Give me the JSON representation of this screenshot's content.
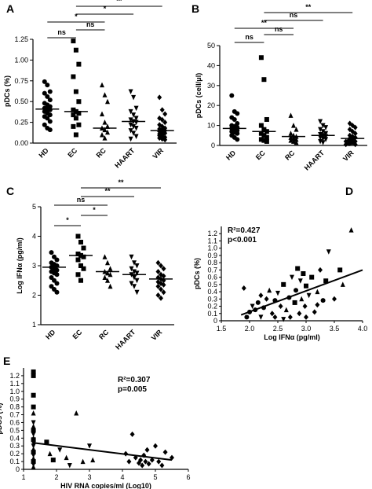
{
  "chart_data": [
    {
      "panel": "A",
      "type": "scatter",
      "ylabel": "pDCs (%)",
      "ylim": [
        0,
        1.25
      ],
      "yticks": [
        "0.00",
        "0.25",
        "0.50",
        "0.75",
        "1.00",
        "1.25"
      ],
      "categories": [
        "HD",
        "EC",
        "RC",
        "HAART",
        "VIR"
      ],
      "markers": [
        "circle",
        "square",
        "triangle",
        "triangle-down",
        "diamond"
      ],
      "medians": [
        0.41,
        0.38,
        0.18,
        0.26,
        0.15
      ],
      "groups": [
        [
          0.74,
          0.7,
          0.62,
          0.6,
          0.56,
          0.52,
          0.48,
          0.46,
          0.44,
          0.42,
          0.41,
          0.4,
          0.38,
          0.36,
          0.34,
          0.32,
          0.3,
          0.26,
          0.22,
          0.18,
          0.16
        ],
        [
          1.23,
          1.12,
          0.95,
          0.8,
          0.62,
          0.5,
          0.4,
          0.38,
          0.36,
          0.34,
          0.3,
          0.22,
          0.2,
          0.1
        ],
        [
          0.7,
          0.58,
          0.5,
          0.35,
          0.25,
          0.2,
          0.18,
          0.16,
          0.13,
          0.1,
          0.06
        ],
        [
          0.62,
          0.55,
          0.42,
          0.38,
          0.34,
          0.3,
          0.28,
          0.26,
          0.25,
          0.22,
          0.2,
          0.18,
          0.15,
          0.12,
          0.08,
          0.05
        ],
        [
          0.55,
          0.4,
          0.35,
          0.3,
          0.28,
          0.25,
          0.22,
          0.2,
          0.18,
          0.17,
          0.16,
          0.15,
          0.14,
          0.13,
          0.12,
          0.11,
          0.1,
          0.1,
          0.09,
          0.08,
          0.07,
          0.06,
          0.05,
          0.04
        ]
      ],
      "significance": [
        {
          "from": "HD",
          "to": "EC",
          "label": "ns"
        },
        {
          "from": "EC",
          "to": "RC",
          "label": "ns"
        },
        {
          "from": "HD",
          "to": "RC",
          "label": "*"
        },
        {
          "from": "EC",
          "to": "HAART",
          "label": "*"
        },
        {
          "from": "EC",
          "to": "VIR",
          "label": "**"
        }
      ]
    },
    {
      "panel": "B",
      "type": "scatter",
      "ylabel": "pDCs (cell/μl)",
      "ylim": [
        0,
        50
      ],
      "yticks": [
        "0",
        "10",
        "20",
        "30",
        "40",
        "50"
      ],
      "categories": [
        "HD",
        "EC",
        "RC",
        "HAART",
        "VIR"
      ],
      "markers": [
        "circle",
        "square",
        "triangle",
        "triangle-down",
        "diamond"
      ],
      "medians": [
        8.5,
        7.0,
        4.5,
        5.0,
        3.5
      ],
      "groups": [
        [
          25,
          17,
          16,
          14,
          13,
          11,
          10,
          9.5,
          9,
          8.5,
          8,
          7.5,
          7,
          6.5,
          6,
          5,
          4,
          3
        ],
        [
          44,
          33,
          13,
          10,
          8,
          7,
          6,
          5,
          4,
          3,
          2.5,
          2
        ],
        [
          15,
          10,
          8,
          6,
          5,
          4.5,
          4,
          3.5,
          3,
          2.5,
          2,
          1.5
        ],
        [
          12,
          10,
          9,
          8,
          7,
          6,
          5.5,
          5,
          4.5,
          4,
          3.5,
          3,
          2,
          1.5
        ],
        [
          11,
          10,
          9,
          8,
          7,
          6,
          5,
          4.5,
          4,
          3.5,
          3,
          3,
          2.5,
          2.5,
          2,
          2,
          1.5,
          1.5,
          1,
          1,
          0.5,
          0.5
        ]
      ],
      "significance": [
        {
          "from": "HD",
          "to": "EC",
          "label": "ns"
        },
        {
          "from": "EC",
          "to": "RC",
          "label": "ns"
        },
        {
          "from": "HD",
          "to": "RC",
          "label": "**"
        },
        {
          "from": "EC",
          "to": "HAART",
          "label": "ns"
        },
        {
          "from": "EC",
          "to": "VIR",
          "label": "**"
        }
      ]
    },
    {
      "panel": "C",
      "type": "scatter",
      "ylabel": "Log IFNα (pg/ml)",
      "ylim": [
        1,
        5
      ],
      "yticks": [
        "1",
        "2",
        "3",
        "4",
        "5"
      ],
      "categories": [
        "HD",
        "EC",
        "RC",
        "HAART",
        "VIR"
      ],
      "markers": [
        "circle",
        "square",
        "triangle",
        "triangle-down",
        "diamond"
      ],
      "medians": [
        2.95,
        3.35,
        2.8,
        2.7,
        2.55
      ],
      "groups": [
        [
          3.45,
          3.3,
          3.2,
          3.1,
          3.05,
          3.0,
          2.95,
          2.9,
          2.85,
          2.8,
          2.75,
          2.7,
          2.6,
          2.5,
          2.4,
          2.3,
          2.2,
          2.1
        ],
        [
          4.0,
          3.8,
          3.6,
          3.4,
          3.35,
          3.3,
          3.2,
          3.0,
          2.9,
          2.7,
          2.5
        ],
        [
          3.3,
          3.1,
          2.9,
          2.8,
          2.75,
          2.7,
          2.6,
          2.5,
          2.3
        ],
        [
          3.3,
          3.1,
          3.0,
          2.9,
          2.8,
          2.75,
          2.7,
          2.6,
          2.5,
          2.4,
          2.3,
          2.1
        ],
        [
          3.1,
          3.0,
          2.9,
          2.8,
          2.7,
          2.65,
          2.6,
          2.55,
          2.5,
          2.45,
          2.4,
          2.35,
          2.3,
          2.2,
          2.1,
          2.0,
          1.9
        ]
      ],
      "significance": [
        {
          "from": "HD",
          "to": "EC",
          "label": "*"
        },
        {
          "from": "EC",
          "to": "RC",
          "label": "*"
        },
        {
          "from": "HD",
          "to": "RC",
          "label": "ns"
        },
        {
          "from": "EC",
          "to": "HAART",
          "label": "**"
        },
        {
          "from": "EC",
          "to": "VIR",
          "label": "**"
        }
      ]
    },
    {
      "panel": "D",
      "type": "scatter",
      "xlabel": "Log IFNα (pg/ml)",
      "ylabel": "pDCs (%)",
      "xlim": [
        1.5,
        4.0
      ],
      "ylim": [
        0,
        1.3
      ],
      "xticks": [
        "1.5",
        "2.0",
        "2.5",
        "3.0",
        "3.5",
        "4.0"
      ],
      "yticks": [
        "0",
        "0.1",
        "0.2",
        "0.3",
        "0.4",
        "0.5",
        "0.6",
        "0.7",
        "0.8",
        "0.9",
        "1.0",
        "1.1",
        "1.2"
      ],
      "annotation_r2": "R²=0.427",
      "annotation_p": "p<0.001",
      "regression": {
        "x": [
          1.85,
          4.0
        ],
        "y": [
          0.08,
          0.7
        ]
      },
      "points": [
        {
          "x": 1.9,
          "y": 0.45,
          "m": "diamond"
        },
        {
          "x": 1.95,
          "y": 0.05,
          "m": "circle"
        },
        {
          "x": 2.0,
          "y": 0.12,
          "m": "circle"
        },
        {
          "x": 2.05,
          "y": 0.2,
          "m": "triangle-down"
        },
        {
          "x": 2.1,
          "y": 0.15,
          "m": "circle"
        },
        {
          "x": 2.15,
          "y": 0.25,
          "m": "circle"
        },
        {
          "x": 2.2,
          "y": 0.35,
          "m": "diamond"
        },
        {
          "x": 2.25,
          "y": 0.18,
          "m": "circle"
        },
        {
          "x": 2.3,
          "y": 0.3,
          "m": "diamond"
        },
        {
          "x": 2.35,
          "y": 0.42,
          "m": "triangle"
        },
        {
          "x": 2.4,
          "y": 0.1,
          "m": "diamond"
        },
        {
          "x": 2.45,
          "y": 0.28,
          "m": "circle"
        },
        {
          "x": 2.5,
          "y": 0.38,
          "m": "triangle-down"
        },
        {
          "x": 2.55,
          "y": 0.2,
          "m": "diamond"
        },
        {
          "x": 2.6,
          "y": 0.5,
          "m": "square"
        },
        {
          "x": 2.65,
          "y": 0.15,
          "m": "triangle"
        },
        {
          "x": 2.7,
          "y": 0.32,
          "m": "circle"
        },
        {
          "x": 2.72,
          "y": 0.05,
          "m": "diamond"
        },
        {
          "x": 2.75,
          "y": 0.6,
          "m": "triangle-down"
        },
        {
          "x": 2.8,
          "y": 0.25,
          "m": "square"
        },
        {
          "x": 2.82,
          "y": 0.42,
          "m": "circle"
        },
        {
          "x": 2.85,
          "y": 0.72,
          "m": "square"
        },
        {
          "x": 2.88,
          "y": 0.1,
          "m": "diamond"
        },
        {
          "x": 2.9,
          "y": 0.55,
          "m": "triangle-down"
        },
        {
          "x": 2.92,
          "y": 0.3,
          "m": "triangle"
        },
        {
          "x": 2.95,
          "y": 0.65,
          "m": "square"
        },
        {
          "x": 2.98,
          "y": 0.2,
          "m": "diamond"
        },
        {
          "x": 3.0,
          "y": 0.48,
          "m": "square"
        },
        {
          "x": 3.05,
          "y": 0.35,
          "m": "triangle-down"
        },
        {
          "x": 3.1,
          "y": 0.6,
          "m": "square"
        },
        {
          "x": 3.15,
          "y": 0.12,
          "m": "diamond"
        },
        {
          "x": 3.2,
          "y": 0.4,
          "m": "triangle"
        },
        {
          "x": 3.25,
          "y": 0.7,
          "m": "diamond"
        },
        {
          "x": 3.3,
          "y": 0.28,
          "m": "circle"
        },
        {
          "x": 3.35,
          "y": 0.55,
          "m": "square"
        },
        {
          "x": 3.4,
          "y": 0.95,
          "m": "triangle-down"
        },
        {
          "x": 3.5,
          "y": 0.3,
          "m": "diamond"
        },
        {
          "x": 3.6,
          "y": 0.7,
          "m": "square"
        },
        {
          "x": 3.65,
          "y": 0.5,
          "m": "triangle"
        },
        {
          "x": 3.8,
          "y": 1.25,
          "m": "triangle"
        },
        {
          "x": 2.6,
          "y": 0.02,
          "m": "triangle-down"
        },
        {
          "x": 2.45,
          "y": 0.05,
          "m": "diamond"
        },
        {
          "x": 3.0,
          "y": 0.05,
          "m": "diamond"
        },
        {
          "x": 2.2,
          "y": 0.05,
          "m": "triangle-down"
        },
        {
          "x": 3.2,
          "y": 0.22,
          "m": "diamond"
        }
      ]
    },
    {
      "panel": "E",
      "type": "scatter",
      "xlabel": "HIV RNA copies/ml (Log10)",
      "ylabel": "pDCs (%)",
      "xlim": [
        1,
        6
      ],
      "ylim": [
        0,
        1.3
      ],
      "xticks": [
        "1",
        "2",
        "3",
        "4",
        "5",
        "6"
      ],
      "yticks": [
        "0",
        "0.1",
        "0.2",
        "0.3",
        "0.4",
        "0.5",
        "0.6",
        "0.7",
        "0.8",
        "0.9",
        "1.0",
        "1.1",
        "1.2"
      ],
      "annotation_r2": "R²=0.307",
      "annotation_p": "p=0.005",
      "regression": {
        "x": [
          1.3,
          5.5
        ],
        "y": [
          0.34,
          0.12
        ]
      },
      "points": [
        {
          "x": 1.3,
          "y": 1.25,
          "m": "square"
        },
        {
          "x": 1.3,
          "y": 1.2,
          "m": "square"
        },
        {
          "x": 1.3,
          "y": 0.95,
          "m": "square"
        },
        {
          "x": 1.3,
          "y": 0.8,
          "m": "square"
        },
        {
          "x": 1.3,
          "y": 0.72,
          "m": "triangle"
        },
        {
          "x": 1.3,
          "y": 0.6,
          "m": "triangle-down"
        },
        {
          "x": 1.3,
          "y": 0.55,
          "m": "triangle"
        },
        {
          "x": 1.3,
          "y": 0.5,
          "m": "square"
        },
        {
          "x": 1.3,
          "y": 0.45,
          "m": "triangle-down"
        },
        {
          "x": 1.3,
          "y": 0.4,
          "m": "triangle"
        },
        {
          "x": 1.3,
          "y": 0.38,
          "m": "square"
        },
        {
          "x": 1.3,
          "y": 0.34,
          "m": "triangle-down"
        },
        {
          "x": 1.3,
          "y": 0.3,
          "m": "triangle-down"
        },
        {
          "x": 1.3,
          "y": 0.26,
          "m": "triangle"
        },
        {
          "x": 1.3,
          "y": 0.22,
          "m": "square"
        },
        {
          "x": 1.3,
          "y": 0.18,
          "m": "triangle-down"
        },
        {
          "x": 1.3,
          "y": 0.14,
          "m": "triangle"
        },
        {
          "x": 1.3,
          "y": 0.1,
          "m": "square"
        },
        {
          "x": 1.3,
          "y": 0.06,
          "m": "triangle-down"
        },
        {
          "x": 1.3,
          "y": 0.03,
          "m": "triangle"
        },
        {
          "x": 1.7,
          "y": 0.35,
          "m": "square"
        },
        {
          "x": 1.8,
          "y": 0.2,
          "m": "triangle"
        },
        {
          "x": 1.9,
          "y": 0.12,
          "m": "square"
        },
        {
          "x": 2.1,
          "y": 0.25,
          "m": "triangle-down"
        },
        {
          "x": 2.3,
          "y": 0.15,
          "m": "triangle"
        },
        {
          "x": 2.4,
          "y": 0.05,
          "m": "triangle-down"
        },
        {
          "x": 2.6,
          "y": 0.72,
          "m": "triangle"
        },
        {
          "x": 2.8,
          "y": 0.1,
          "m": "triangle"
        },
        {
          "x": 3.0,
          "y": 0.3,
          "m": "triangle-down"
        },
        {
          "x": 3.1,
          "y": 0.12,
          "m": "triangle"
        },
        {
          "x": 4.1,
          "y": 0.2,
          "m": "diamond"
        },
        {
          "x": 4.2,
          "y": 0.1,
          "m": "diamond"
        },
        {
          "x": 4.3,
          "y": 0.45,
          "m": "diamond"
        },
        {
          "x": 4.4,
          "y": 0.15,
          "m": "diamond"
        },
        {
          "x": 4.5,
          "y": 0.08,
          "m": "diamond"
        },
        {
          "x": 4.55,
          "y": 0.12,
          "m": "diamond"
        },
        {
          "x": 4.6,
          "y": 0.05,
          "m": "diamond"
        },
        {
          "x": 4.65,
          "y": 0.18,
          "m": "diamond"
        },
        {
          "x": 4.7,
          "y": 0.1,
          "m": "diamond"
        },
        {
          "x": 4.75,
          "y": 0.25,
          "m": "diamond"
        },
        {
          "x": 4.8,
          "y": 0.07,
          "m": "diamond"
        },
        {
          "x": 4.9,
          "y": 0.12,
          "m": "diamond"
        },
        {
          "x": 5.0,
          "y": 0.3,
          "m": "diamond"
        },
        {
          "x": 5.1,
          "y": 0.1,
          "m": "diamond"
        },
        {
          "x": 5.2,
          "y": 0.05,
          "m": "diamond"
        },
        {
          "x": 5.3,
          "y": 0.22,
          "m": "diamond"
        },
        {
          "x": 5.5,
          "y": 0.15,
          "m": "diamond"
        }
      ]
    }
  ]
}
